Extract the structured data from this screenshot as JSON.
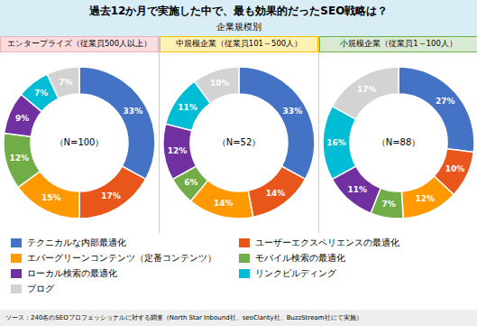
{
  "title": "過去12か月で実施した中で、最も効果的だったSEO戦略は？",
  "subtitle": "企業規模別",
  "annotations": [
    "ソース：240名のSEOプロフェッショナルに対する調査（North Star Inbound社、seoClarity社、BuzzStream社にて実施）"
  ],
  "legend": "bottom",
  "chart_data": [
    {
      "type": "pie",
      "title": "エンタープライズ（従業員500人以上）",
      "annotations": [
        "（N=100）"
      ],
      "categories": [
        "テクニカルな内部最適化",
        "ユーザーエクスペリエンスの最適化",
        "エバーグリーンコンテンツ（定番コンテンツ）",
        "モバイル検索の最適化",
        "ローカル検索の最適化",
        "リンクビルディング",
        "ブログ"
      ],
      "values": [
        33,
        17,
        15,
        12,
        9,
        7,
        7
      ],
      "value_labels": [
        "33%",
        "17%",
        "15%",
        "12%",
        "9%",
        "7%",
        "7%"
      ],
      "colors": [
        "#4472C4",
        "#E8561C",
        "#FF9900",
        "#70AD47",
        "#7030A0",
        "#00BCD4",
        "#D3D3D3"
      ],
      "data_labels": true
    },
    {
      "type": "pie",
      "title": "中規模企業（従業員101～500人）",
      "annotations": [
        "（N=52）"
      ],
      "categories": [
        "テクニカルな内部最適化",
        "ユーザーエクスペリエンスの最適化",
        "エバーグリーンコンテンツ（定番コンテンツ）",
        "モバイル検索の最適化",
        "ローカル検索の最適化",
        "リンクビルディング",
        "ブログ"
      ],
      "values": [
        33,
        14,
        14,
        6,
        12,
        11,
        10
      ],
      "value_labels": [
        "33%",
        "14%",
        "14%",
        "6%",
        "12%",
        "11%",
        "10%"
      ],
      "colors": [
        "#4472C4",
        "#E8561C",
        "#FF9900",
        "#70AD47",
        "#7030A0",
        "#00BCD4",
        "#D3D3D3"
      ],
      "data_labels": true
    },
    {
      "type": "pie",
      "title": "小規模企業（従業員1～100人）",
      "annotations": [
        "（N=88）"
      ],
      "categories": [
        "テクニカルな内部最適化",
        "ユーザーエクスペリエンスの最適化",
        "エバーグリーンコンテンツ（定番コンテンツ）",
        "モバイル検索の最適化",
        "ローカル検索の最適化",
        "リンクビルディング",
        "ブログ"
      ],
      "values": [
        27,
        10,
        12,
        7,
        11,
        16,
        17
      ],
      "value_labels": [
        "27%",
        "10%",
        "12%",
        "7%",
        "11%",
        "16%",
        "17%"
      ],
      "colors": [
        "#4472C4",
        "#E8561C",
        "#FF9900",
        "#70AD47",
        "#7030A0",
        "#00BCD4",
        "#D3D3D3"
      ],
      "data_labels": true
    }
  ]
}
